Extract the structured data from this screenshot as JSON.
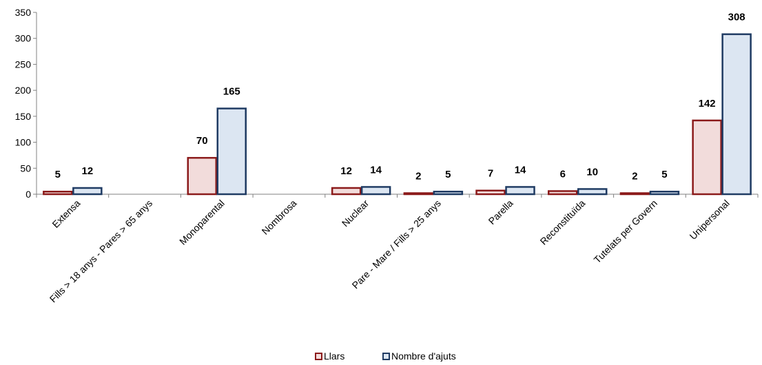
{
  "chart_data": {
    "type": "bar",
    "categories": [
      "Extensa",
      "Fills > 18 anys - Pares > 65 anys",
      "Monoparental",
      "Nombrosa",
      "Nuclear",
      "Pare - Mare / Fills > 25 anys",
      "Parella",
      "Reconstituïda",
      "Tutelats per Govern",
      "Unipersonal"
    ],
    "series": [
      {
        "name": "Llars",
        "values": [
          5,
          0,
          70,
          0,
          12,
          2,
          7,
          6,
          2,
          142
        ],
        "labels": [
          "5",
          "",
          "70",
          "",
          "12",
          "2",
          "7",
          "6",
          "2",
          "142"
        ],
        "fill": "#f2dcdb",
        "stroke": "#8b1a1a"
      },
      {
        "name": "Nombre d'ajuts",
        "values": [
          12,
          0,
          165,
          0,
          14,
          5,
          14,
          10,
          5,
          308
        ],
        "labels": [
          "12",
          "",
          "165",
          "",
          "14",
          "5",
          "14",
          "10",
          "5",
          "308"
        ],
        "fill": "#dce6f2",
        "stroke": "#1f3b63"
      }
    ],
    "yticks": [
      "0",
      "50",
      "100",
      "150",
      "200",
      "250",
      "300",
      "350"
    ],
    "ylim": [
      0,
      350
    ],
    "grid": false,
    "legend_position": "bottom"
  }
}
